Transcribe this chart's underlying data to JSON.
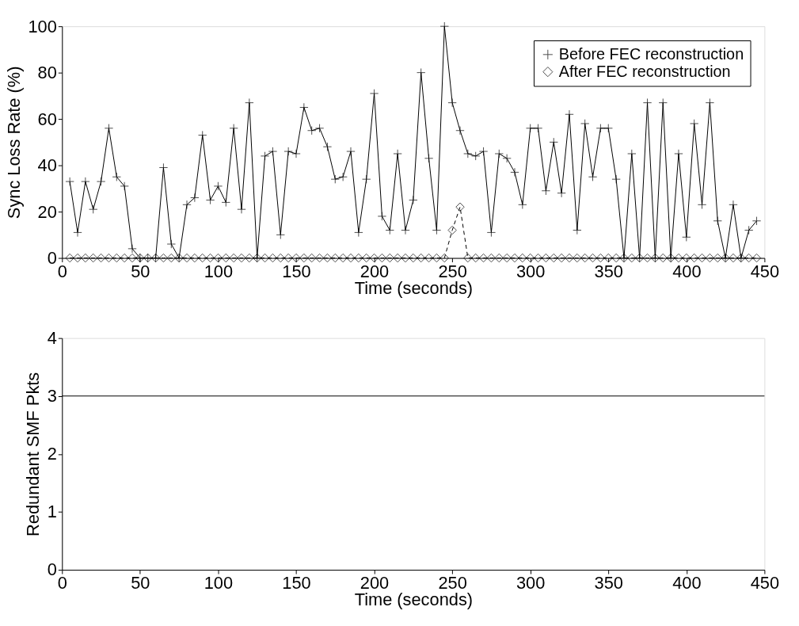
{
  "chart_data": [
    {
      "type": "line",
      "xlabel": "Time (seconds)",
      "ylabel": "Sync Loss Rate (%)",
      "xlim": [
        0,
        450
      ],
      "ylim": [
        0,
        100
      ],
      "xticks": [
        0,
        50,
        100,
        150,
        200,
        250,
        300,
        350,
        400,
        450
      ],
      "yticks": [
        0,
        20,
        40,
        60,
        80,
        100
      ],
      "grid": false,
      "legend": "top right",
      "x": [
        5,
        10,
        15,
        20,
        25,
        30,
        35,
        40,
        45,
        50,
        55,
        60,
        65,
        70,
        75,
        80,
        85,
        90,
        95,
        100,
        105,
        110,
        115,
        120,
        125,
        130,
        135,
        140,
        145,
        150,
        155,
        160,
        165,
        170,
        175,
        180,
        185,
        190,
        195,
        200,
        205,
        210,
        215,
        220,
        225,
        230,
        235,
        240,
        245,
        250,
        255,
        260,
        265,
        270,
        275,
        280,
        285,
        290,
        295,
        300,
        305,
        310,
        315,
        320,
        325,
        330,
        335,
        340,
        345,
        350,
        355,
        360,
        365,
        370,
        375,
        380,
        385,
        390,
        395,
        400,
        405,
        410,
        415,
        420,
        425,
        430,
        435,
        440,
        445
      ],
      "series": [
        {
          "name": "Before FEC reconstruction",
          "color": "#000000",
          "marker": "cross",
          "line_style": "solid",
          "values": [
            33,
            11,
            33,
            21,
            33,
            56,
            35,
            31,
            4,
            0,
            0,
            0,
            39,
            6,
            0,
            23,
            26,
            53,
            25,
            31,
            24,
            56,
            21,
            67,
            0,
            44,
            46,
            10,
            46,
            45,
            65,
            55,
            56,
            48,
            34,
            35,
            46,
            11,
            34,
            71,
            18,
            12,
            45,
            12,
            25,
            80,
            43,
            12,
            100,
            67,
            55,
            45,
            44,
            46,
            11,
            45,
            43,
            37,
            23,
            56,
            56,
            29,
            50,
            28,
            62,
            12,
            58,
            35,
            56,
            56,
            34,
            0,
            45,
            0,
            67,
            0,
            67,
            0,
            45,
            9,
            58,
            23,
            67,
            16,
            0,
            23,
            0,
            12,
            16
          ]
        },
        {
          "name": "After FEC reconstruction",
          "color": "#000000",
          "marker": "diamond",
          "line_style": "dashed",
          "values": [
            0,
            0,
            0,
            0,
            0,
            0,
            0,
            0,
            0,
            0,
            0,
            0,
            0,
            0,
            0,
            0,
            0,
            0,
            0,
            0,
            0,
            0,
            0,
            0,
            0,
            0,
            0,
            0,
            0,
            0,
            0,
            0,
            0,
            0,
            0,
            0,
            0,
            0,
            0,
            0,
            0,
            0,
            0,
            0,
            0,
            0,
            0,
            0,
            0,
            12,
            22,
            0,
            0,
            0,
            0,
            0,
            0,
            0,
            0,
            0,
            0,
            0,
            0,
            0,
            0,
            0,
            0,
            0,
            0,
            0,
            0,
            0,
            0,
            0,
            0,
            0,
            0,
            0,
            0,
            0,
            0,
            0,
            0,
            0,
            0,
            0,
            0,
            0,
            0
          ]
        }
      ]
    },
    {
      "type": "line",
      "xlabel": "Time (seconds)",
      "ylabel": "Redundant SMF Pkts",
      "xlim": [
        0,
        450
      ],
      "ylim": [
        0,
        4
      ],
      "xticks": [
        0,
        50,
        100,
        150,
        200,
        250,
        300,
        350,
        400,
        450
      ],
      "yticks": [
        0,
        1,
        2,
        3,
        4
      ],
      "grid": false,
      "x": [
        0,
        450
      ],
      "series": [
        {
          "color": "#000000",
          "marker": "none",
          "line_style": "solid",
          "values": [
            3,
            3
          ]
        }
      ]
    }
  ]
}
